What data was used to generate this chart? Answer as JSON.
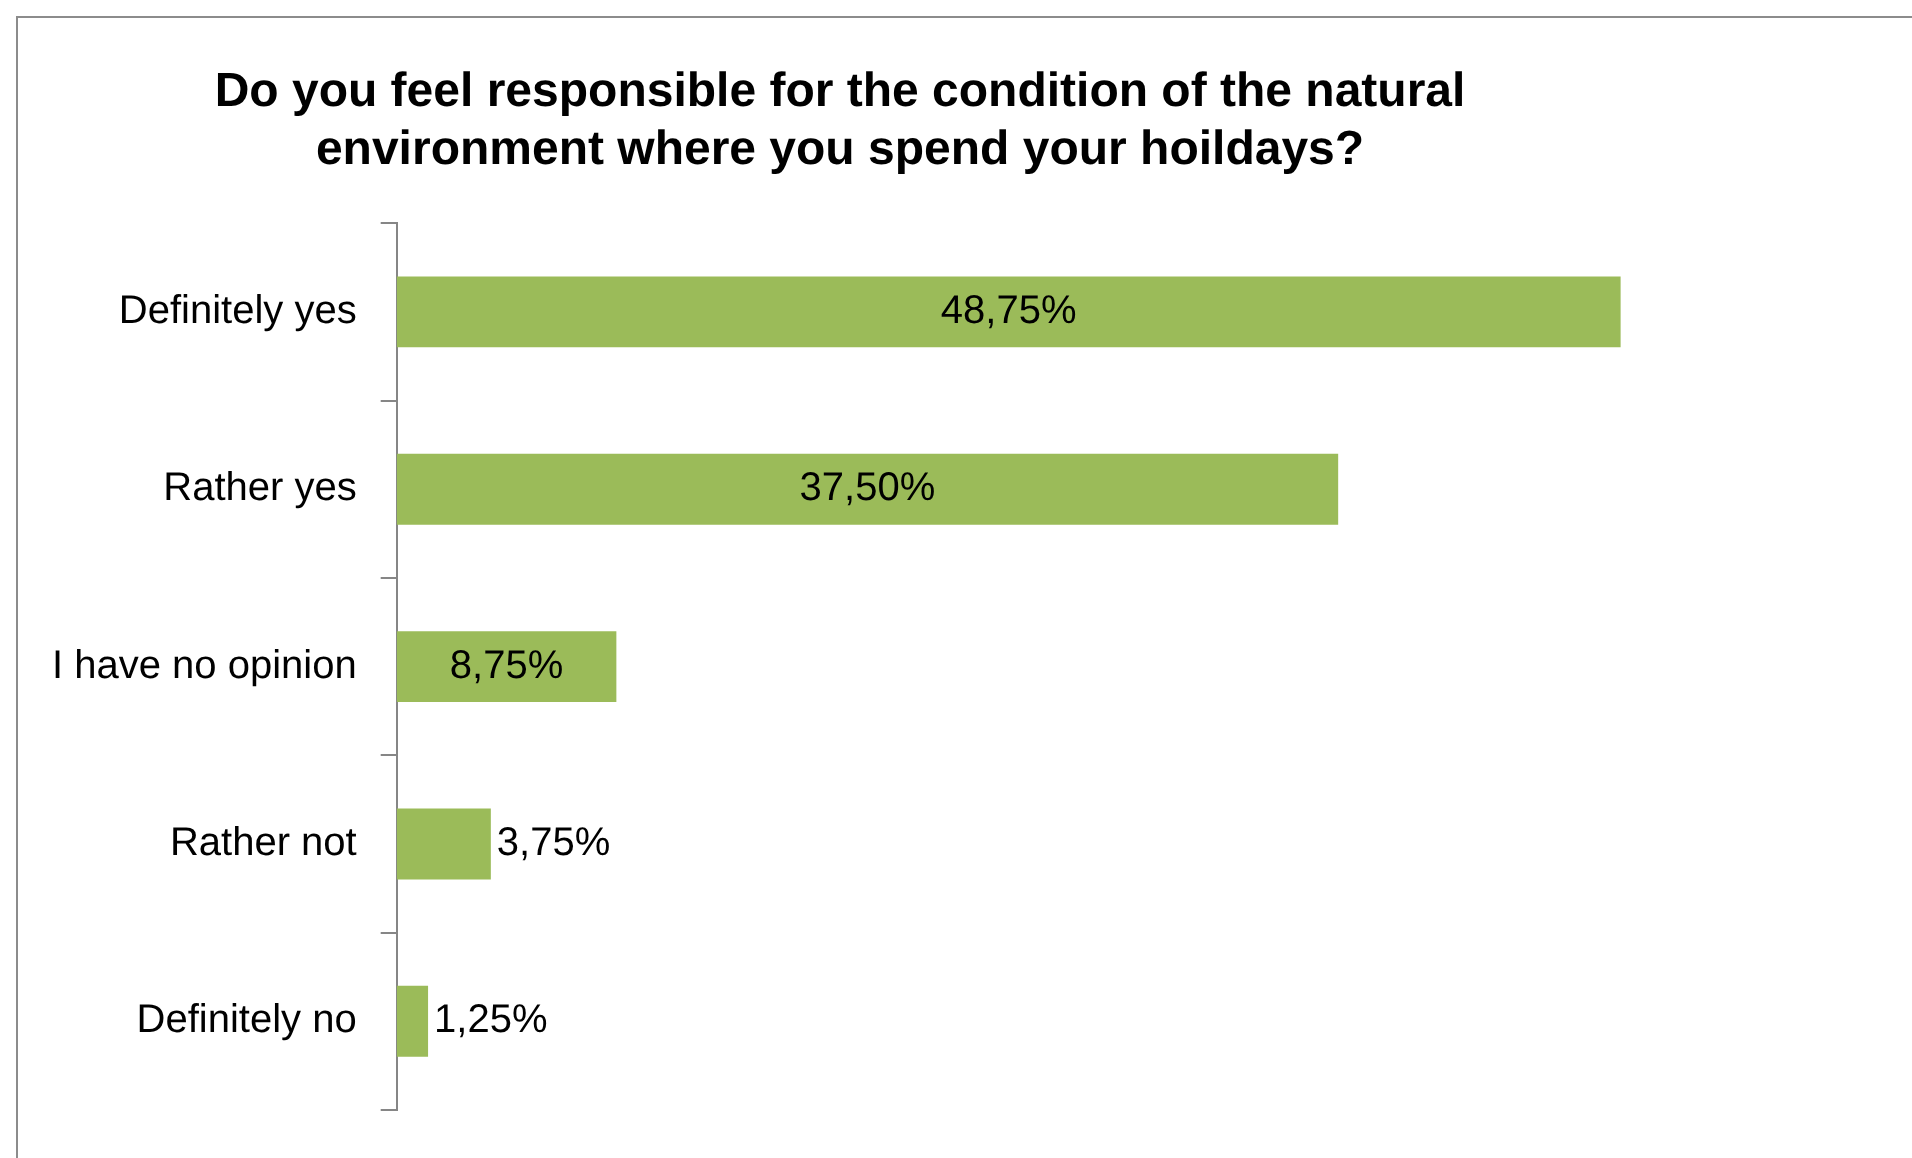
{
  "chart_data": {
    "type": "bar",
    "orientation": "horizontal",
    "title": "Do you feel responsible for the condition of the natural environment where you spend your hoildays?",
    "categories": [
      "Definitely yes",
      "Rather yes",
      "I have no opinion",
      "Rather not",
      "Definitely no"
    ],
    "values": [
      48.75,
      37.5,
      8.75,
      3.75,
      1.25
    ],
    "value_labels": [
      "48,75%",
      "37,50%",
      "8,75%",
      "3,75%",
      "1,25%"
    ],
    "color": "#9bbb59",
    "grid": false,
    "legend": false
  }
}
